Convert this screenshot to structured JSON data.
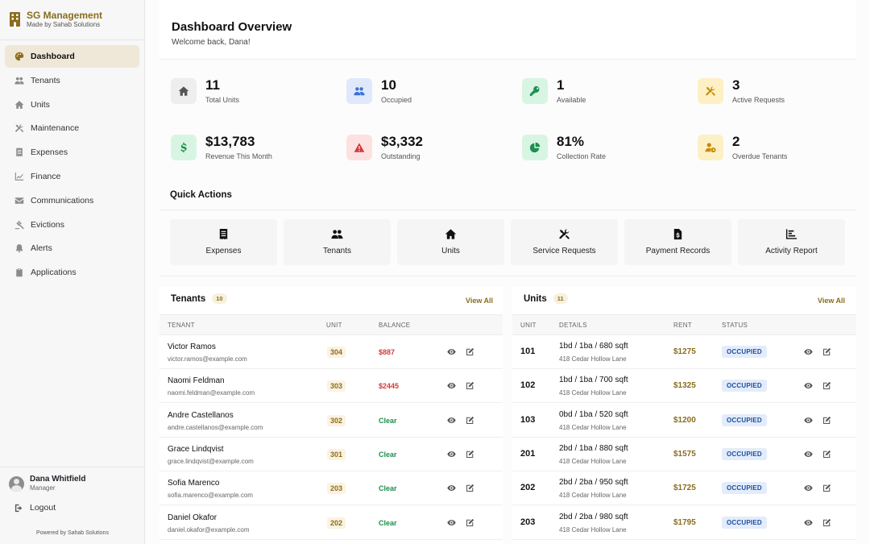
{
  "brand": {
    "title": "SG Management",
    "subtitle": "Made by Sahab Solutions"
  },
  "nav": [
    {
      "label": "Dashboard",
      "icon": "palette-icon",
      "active": true
    },
    {
      "label": "Tenants",
      "icon": "users-icon"
    },
    {
      "label": "Units",
      "icon": "home-icon"
    },
    {
      "label": "Maintenance",
      "icon": "tools-icon"
    },
    {
      "label": "Expenses",
      "icon": "receipt-icon"
    },
    {
      "label": "Finance",
      "icon": "chart-line-icon"
    },
    {
      "label": "Communications",
      "icon": "envelope-icon"
    },
    {
      "label": "Evictions",
      "icon": "gavel-icon"
    },
    {
      "label": "Alerts",
      "icon": "bell-icon"
    },
    {
      "label": "Applications",
      "icon": "clipboard-icon"
    }
  ],
  "user": {
    "name": "Dana Whitfield",
    "role": "Manager",
    "logout_label": "Logout",
    "powered_by": "Powered by Sahab Solutions"
  },
  "header": {
    "title": "Dashboard Overview",
    "subtitle": "Welcome back, Dana!"
  },
  "stats": [
    {
      "value": "11",
      "label": "Total Units",
      "icon": "home-icon",
      "bg": "#eeeeee",
      "fg": "#555555"
    },
    {
      "value": "10",
      "label": "Occupied",
      "icon": "users-icon",
      "bg": "#dfe9fb",
      "fg": "#3b6fd4"
    },
    {
      "value": "1",
      "label": "Available",
      "icon": "key-icon",
      "bg": "#d8f5e3",
      "fg": "#1e8f4e"
    },
    {
      "value": "3",
      "label": "Active Requests",
      "icon": "tools-icon",
      "bg": "#fdf0c4",
      "fg": "#c98a0b"
    },
    {
      "value": "$13,783",
      "label": "Revenue This Month",
      "icon": "dollar-icon",
      "bg": "#d8f5e3",
      "fg": "#1e8f4e"
    },
    {
      "value": "$3,332",
      "label": "Outstanding",
      "icon": "warning-icon",
      "bg": "#fde1e1",
      "fg": "#d23b3b"
    },
    {
      "value": "81%",
      "label": "Collection Rate",
      "icon": "pie-chart-icon",
      "bg": "#d8f5e3",
      "fg": "#1e8f4e"
    },
    {
      "value": "2",
      "label": "Overdue Tenants",
      "icon": "user-clock-icon",
      "bg": "#fdf0c4",
      "fg": "#c98a0b"
    }
  ],
  "quick_actions": {
    "title": "Quick Actions",
    "items": [
      {
        "label": "Expenses",
        "icon": "receipt-icon"
      },
      {
        "label": "Tenants",
        "icon": "users-icon"
      },
      {
        "label": "Units",
        "icon": "home-icon"
      },
      {
        "label": "Service Requests",
        "icon": "tools-icon"
      },
      {
        "label": "Payment Records",
        "icon": "file-invoice-icon"
      },
      {
        "label": "Activity Report",
        "icon": "chart-bar-icon"
      }
    ]
  },
  "tenants": {
    "title": "Tenants",
    "count": "10",
    "view_all": "View All",
    "columns": [
      "TENANT",
      "UNIT",
      "BALANCE"
    ],
    "rows": [
      {
        "name": "Victor Ramos",
        "email": "victor.ramos@example.com",
        "unit": "304",
        "balance": "$887",
        "owes": true
      },
      {
        "name": "Naomi Feldman",
        "email": "naomi.feldman@example.com",
        "unit": "303",
        "balance": "$2445",
        "owes": true
      },
      {
        "name": "Andre Castellanos",
        "email": "andre.castellanos@example.com",
        "unit": "302",
        "balance": "Clear",
        "owes": false
      },
      {
        "name": "Grace Lindqvist",
        "email": "grace.lindqvist@example.com",
        "unit": "301",
        "balance": "Clear",
        "owes": false
      },
      {
        "name": "Sofia Marenco",
        "email": "sofia.marenco@example.com",
        "unit": "203",
        "balance": "Clear",
        "owes": false
      },
      {
        "name": "Daniel Okafor",
        "email": "daniel.okafor@example.com",
        "unit": "202",
        "balance": "Clear",
        "owes": false
      }
    ]
  },
  "units": {
    "title": "Units",
    "count": "11",
    "view_all": "View All",
    "columns": [
      "UNIT",
      "DETAILS",
      "RENT",
      "STATUS"
    ],
    "rows": [
      {
        "unit": "101",
        "details": "1bd / 1ba / 680 sqft",
        "address": "418 Cedar Hollow Lane",
        "rent": "$1275",
        "status": "OCCUPIED"
      },
      {
        "unit": "102",
        "details": "1bd / 1ba / 700 sqft",
        "address": "418 Cedar Hollow Lane",
        "rent": "$1325",
        "status": "OCCUPIED"
      },
      {
        "unit": "103",
        "details": "0bd / 1ba / 520 sqft",
        "address": "418 Cedar Hollow Lane",
        "rent": "$1200",
        "status": "OCCUPIED"
      },
      {
        "unit": "201",
        "details": "2bd / 1ba / 880 sqft",
        "address": "418 Cedar Hollow Lane",
        "rent": "$1575",
        "status": "OCCUPIED"
      },
      {
        "unit": "202",
        "details": "2bd / 2ba / 950 sqft",
        "address": "418 Cedar Hollow Lane",
        "rent": "$1725",
        "status": "OCCUPIED"
      },
      {
        "unit": "203",
        "details": "2bd / 2ba / 980 sqft",
        "address": "418 Cedar Hollow Lane",
        "rent": "$1795",
        "status": "OCCUPIED"
      }
    ]
  },
  "colors": {
    "accent": "#8a6d1e",
    "owed": "#d23b3b",
    "clear": "#1e8f4e",
    "status_bg": "#e3ecfa",
    "status_fg": "#1d4ea1"
  }
}
